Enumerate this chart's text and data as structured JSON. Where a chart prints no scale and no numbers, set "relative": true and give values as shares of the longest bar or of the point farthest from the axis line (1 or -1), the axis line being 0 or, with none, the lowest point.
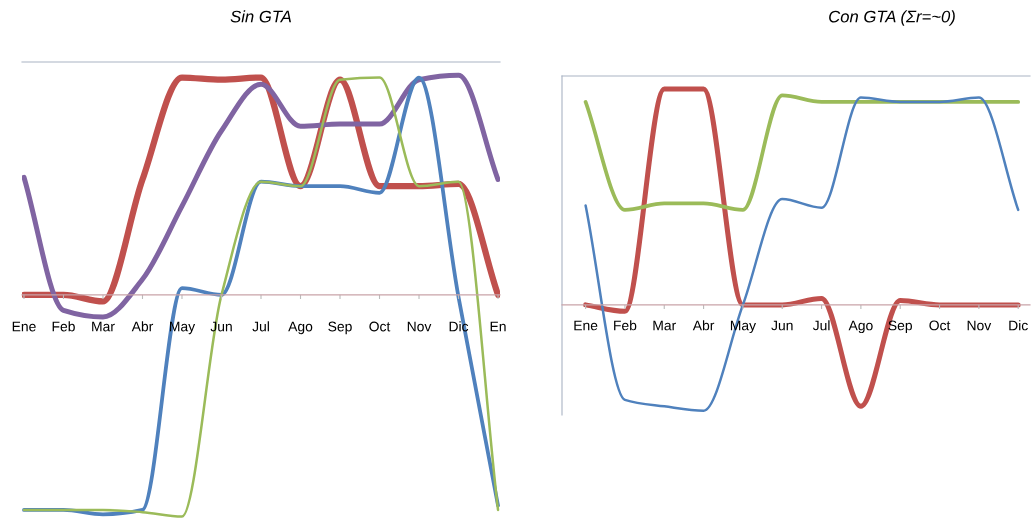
{
  "chart_data": [
    {
      "type": "line",
      "title": "Sin GTA",
      "relative": true,
      "grid": false,
      "legend": false,
      "marker": "none",
      "line_style": "solid",
      "categories": [
        "Ene",
        "Feb",
        "Mar",
        "Abr",
        "May",
        "Jun",
        "Jul",
        "Ago",
        "Sep",
        "Oct",
        "Nov",
        "Dic",
        "En"
      ],
      "series": [
        {
          "color": "#c0504d",
          "values": [
            0,
            0,
            -0.03,
            0.52,
            0.98,
            0.97,
            0.98,
            0.49,
            0.97,
            0.49,
            0.49,
            0.5,
            0
          ]
        },
        {
          "color": "#8064a2",
          "values": [
            0.53,
            -0.07,
            -0.1,
            0.07,
            0.4,
            0.74,
            0.95,
            0.76,
            0.77,
            0.77,
            0.97,
            0.99,
            0.52
          ]
        },
        {
          "color": "#4f81bd",
          "values": [
            -0.97,
            -0.97,
            -0.99,
            -0.97,
            0.03,
            0,
            0.51,
            0.49,
            0.49,
            0.46,
            0.98,
            -0.01,
            -0.95
          ]
        },
        {
          "color": "#9bbb59",
          "values": [
            -0.97,
            -0.97,
            -0.97,
            -0.98,
            -1,
            0,
            0.51,
            0.49,
            0.97,
            0.98,
            0.49,
            0.51,
            -0.97
          ]
        }
      ]
    },
    {
      "type": "line",
      "title": "Con GTA (Σr=~0)",
      "relative": true,
      "grid": false,
      "legend": false,
      "marker": "none",
      "line_style": "solid",
      "categories": [
        "Ene",
        "Feb",
        "Mar",
        "Abr",
        "May",
        "Jun",
        "Jul",
        "Ago",
        "Sep",
        "Oct",
        "Nov",
        "Dic"
      ],
      "series": [
        {
          "color": "#c0504d",
          "values": [
            0,
            -0.03,
            1,
            1,
            0,
            0,
            0.03,
            -0.47,
            0.02,
            0,
            0,
            0
          ]
        },
        {
          "color": "#9bbb59",
          "values": [
            0.94,
            0.44,
            0.47,
            0.47,
            0.44,
            0.97,
            0.94,
            0.94,
            0.94,
            0.94,
            0.94,
            0.94
          ]
        },
        {
          "color": "#4f81bd",
          "values": [
            0.46,
            -0.44,
            -0.47,
            -0.49,
            0,
            0.49,
            0.45,
            0.96,
            0.94,
            0.94,
            0.96,
            0.44
          ]
        }
      ]
    }
  ]
}
